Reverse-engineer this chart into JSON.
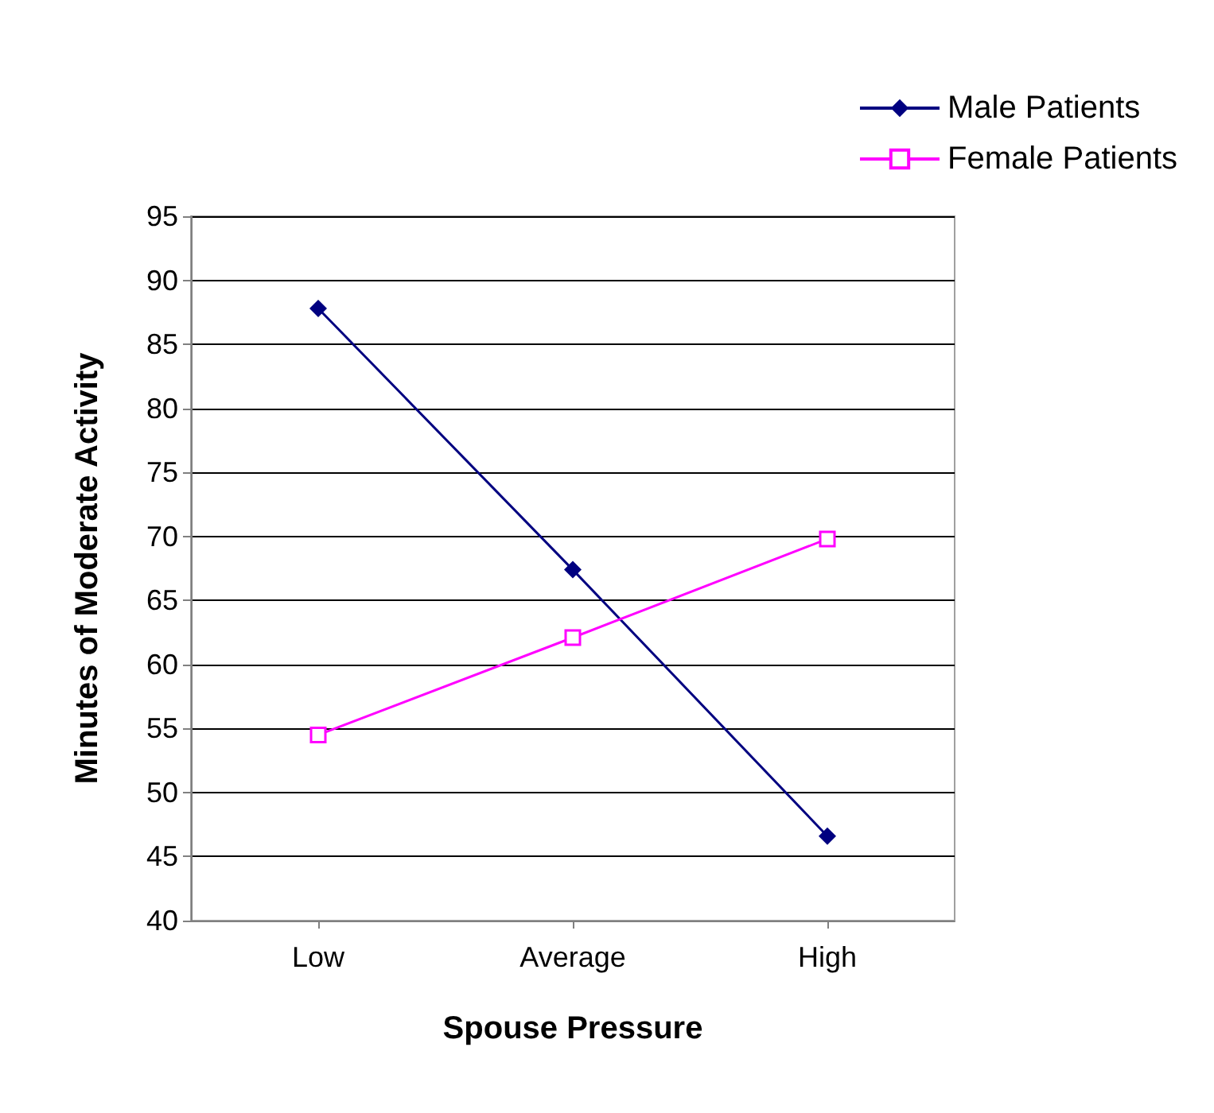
{
  "chart_data": {
    "type": "line",
    "xlabel": "Spouse Pressure",
    "ylabel": "Minutes of Moderate Activity",
    "categories": [
      "Low",
      "Average",
      "High"
    ],
    "series": [
      {
        "name": "Male Patients",
        "color": "#000080",
        "marker": "diamond",
        "values": [
          87.8,
          67.4,
          46.6
        ]
      },
      {
        "name": "Female Patients",
        "color": "#ff00ff",
        "marker": "square",
        "values": [
          54.5,
          62.1,
          69.8
        ]
      }
    ],
    "ylim": [
      40,
      95
    ],
    "yticks": [
      40,
      45,
      50,
      55,
      60,
      65,
      70,
      75,
      80,
      85,
      90,
      95
    ],
    "grid": "y",
    "legend": "top right",
    "line_style": "solid"
  }
}
